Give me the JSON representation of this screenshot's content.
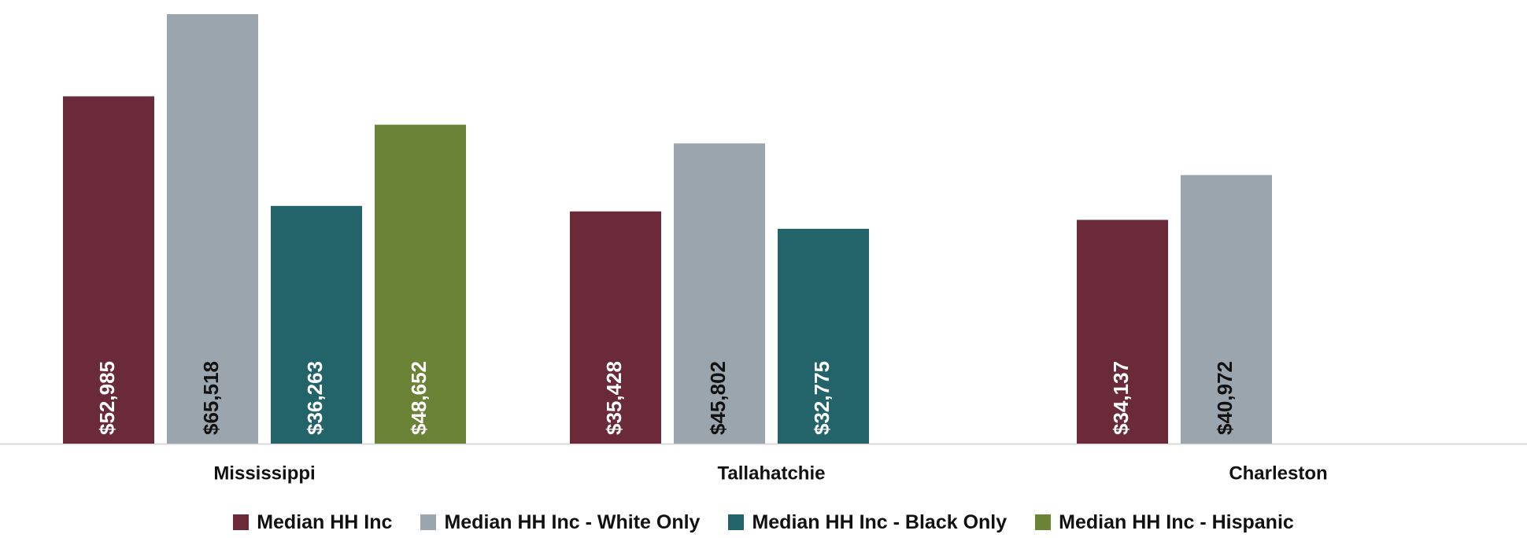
{
  "chart_data": {
    "type": "bar",
    "title": "",
    "xlabel": "",
    "ylabel": "",
    "categories": [
      "Mississippi",
      "Tallahatchie",
      "Charleston"
    ],
    "ylim": [
      0,
      66000
    ],
    "grid": false,
    "legend_position": "bottom",
    "series": [
      {
        "name": "Median HH Inc",
        "color": "#6b2a3a",
        "label_color": "#ffffff",
        "values": [
          52985,
          35428,
          34137
        ],
        "labels": [
          "$52,985",
          "$35,428",
          "$34,137"
        ]
      },
      {
        "name": "Median HH Inc - White Only",
        "color": "#9aa5ae",
        "label_color": "#111111",
        "values": [
          65518,
          45802,
          40972
        ],
        "labels": [
          "$65,518",
          "$45,802",
          "$40,972"
        ]
      },
      {
        "name": "Median HH Inc - Black Only",
        "color": "#23646b",
        "label_color": "#ffffff",
        "values": [
          36263,
          32775,
          null
        ],
        "labels": [
          "$36,263",
          "$32,775",
          null
        ]
      },
      {
        "name": "Median HH Inc - Hispanic",
        "color": "#6a8337",
        "label_color": "#ffffff",
        "values": [
          48652,
          null,
          null
        ],
        "labels": [
          "$48,652",
          null,
          null
        ]
      }
    ]
  }
}
